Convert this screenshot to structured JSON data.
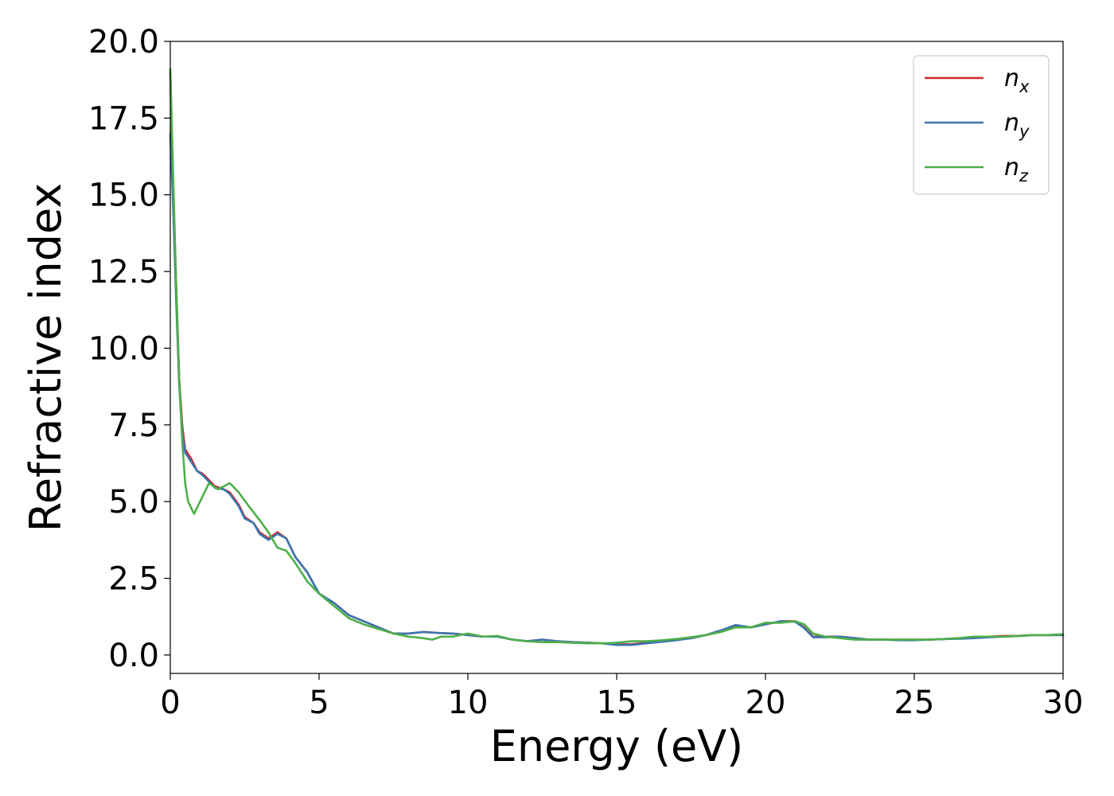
{
  "chart_data": {
    "type": "line",
    "title": "",
    "xlabel": "Energy (eV)",
    "ylabel": "Refractive index",
    "xlim": [
      0,
      30
    ],
    "ylim": [
      -0.6,
      20.0
    ],
    "xticks": [
      0,
      5,
      10,
      15,
      20,
      25,
      30
    ],
    "yticks": [
      0.0,
      2.5,
      5.0,
      7.5,
      10.0,
      12.5,
      15.0,
      17.5,
      20.0
    ],
    "xtick_labels": [
      "0",
      "5",
      "10",
      "15",
      "20",
      "25",
      "30"
    ],
    "ytick_labels": [
      "0.0",
      "2.5",
      "5.0",
      "7.5",
      "10.0",
      "12.5",
      "15.0",
      "17.5",
      "20.0"
    ],
    "grid": false,
    "legend_position": "top-right",
    "series": [
      {
        "name": "n_x",
        "legend_base": "n",
        "legend_sub": "x",
        "color": "#d62728",
        "x": [
          0,
          0.1,
          0.2,
          0.3,
          0.4,
          0.5,
          0.7,
          0.9,
          1.1,
          1.3,
          1.5,
          1.8,
          2.0,
          2.3,
          2.5,
          2.8,
          3.0,
          3.3,
          3.6,
          3.9,
          4.2,
          4.6,
          5.0,
          5.5,
          6.0,
          6.5,
          7.0,
          7.5,
          8.0,
          8.5,
          9.0,
          9.5,
          10.0,
          10.5,
          11.0,
          11.5,
          12.0,
          12.5,
          13.0,
          13.5,
          14.0,
          14.5,
          15.0,
          15.5,
          16.0,
          16.5,
          17.0,
          17.5,
          18.0,
          18.5,
          19.0,
          19.5,
          20.0,
          20.5,
          21.0,
          21.3,
          21.6,
          22.0,
          22.5,
          23.0,
          23.5,
          24.0,
          24.5,
          25.0,
          25.5,
          26.0,
          26.5,
          27.0,
          27.5,
          28.0,
          28.5,
          29.0,
          29.5,
          30.0
        ],
        "values": [
          19.0,
          15.0,
          12.0,
          9.0,
          7.5,
          6.7,
          6.4,
          6.0,
          5.9,
          5.7,
          5.5,
          5.4,
          5.3,
          4.9,
          4.5,
          4.3,
          4.0,
          3.8,
          4.0,
          3.8,
          3.2,
          2.7,
          2.0,
          1.7,
          1.3,
          1.1,
          0.9,
          0.7,
          0.7,
          0.75,
          0.72,
          0.7,
          0.65,
          0.6,
          0.6,
          0.5,
          0.45,
          0.5,
          0.45,
          0.42,
          0.4,
          0.38,
          0.35,
          0.35,
          0.4,
          0.45,
          0.5,
          0.55,
          0.65,
          0.8,
          0.95,
          0.9,
          1.0,
          1.1,
          1.1,
          0.9,
          0.6,
          0.6,
          0.6,
          0.55,
          0.5,
          0.5,
          0.5,
          0.5,
          0.5,
          0.52,
          0.55,
          0.57,
          0.6,
          0.62,
          0.62,
          0.65,
          0.65,
          0.65
        ]
      },
      {
        "name": "n_y",
        "legend_base": "n",
        "legend_sub": "y",
        "color": "#3a75b0",
        "x": [
          0,
          0.1,
          0.2,
          0.3,
          0.4,
          0.5,
          0.7,
          0.9,
          1.1,
          1.3,
          1.5,
          1.8,
          2.0,
          2.3,
          2.5,
          2.8,
          3.0,
          3.3,
          3.6,
          3.9,
          4.2,
          4.6,
          5.0,
          5.5,
          6.0,
          6.5,
          7.0,
          7.5,
          8.0,
          8.5,
          9.0,
          9.5,
          10.0,
          10.5,
          11.0,
          11.5,
          12.0,
          12.5,
          13.0,
          13.5,
          14.0,
          14.5,
          15.0,
          15.5,
          16.0,
          16.5,
          17.0,
          17.5,
          18.0,
          18.5,
          19.0,
          19.5,
          20.0,
          20.5,
          21.0,
          21.3,
          21.6,
          22.0,
          22.5,
          23.0,
          23.5,
          24.0,
          24.5,
          25.0,
          25.5,
          26.0,
          26.5,
          27.0,
          27.5,
          28.0,
          28.5,
          29.0,
          29.5,
          30.0
        ],
        "values": [
          17.0,
          14.5,
          11.5,
          8.8,
          7.3,
          6.6,
          6.3,
          6.0,
          5.85,
          5.65,
          5.45,
          5.4,
          5.25,
          4.85,
          4.45,
          4.3,
          3.95,
          3.75,
          3.95,
          3.8,
          3.2,
          2.7,
          2.0,
          1.7,
          1.3,
          1.1,
          0.9,
          0.7,
          0.7,
          0.75,
          0.72,
          0.7,
          0.65,
          0.6,
          0.6,
          0.5,
          0.45,
          0.5,
          0.45,
          0.42,
          0.4,
          0.38,
          0.33,
          0.33,
          0.38,
          0.43,
          0.48,
          0.55,
          0.65,
          0.8,
          0.98,
          0.9,
          1.0,
          1.1,
          1.08,
          0.88,
          0.58,
          0.58,
          0.6,
          0.55,
          0.5,
          0.5,
          0.48,
          0.48,
          0.5,
          0.52,
          0.53,
          0.55,
          0.58,
          0.6,
          0.62,
          0.65,
          0.65,
          0.65
        ]
      },
      {
        "name": "n_z",
        "legend_base": "n",
        "legend_sub": "z",
        "color": "#4daf4a",
        "x": [
          0,
          0.1,
          0.2,
          0.3,
          0.4,
          0.5,
          0.6,
          0.8,
          1.0,
          1.3,
          1.6,
          2.0,
          2.3,
          2.6,
          3.0,
          3.3,
          3.6,
          3.9,
          4.2,
          4.6,
          5.0,
          5.5,
          6.0,
          6.5,
          7.0,
          7.5,
          8.0,
          8.5,
          8.8,
          9.1,
          9.5,
          10.0,
          10.5,
          11.0,
          11.5,
          12.0,
          12.5,
          13.0,
          13.5,
          14.0,
          14.5,
          15.0,
          15.5,
          16.0,
          16.5,
          17.0,
          17.5,
          18.0,
          18.5,
          19.0,
          19.5,
          20.0,
          20.5,
          21.0,
          21.3,
          21.6,
          22.0,
          22.5,
          23.0,
          23.5,
          24.0,
          24.5,
          25.0,
          25.5,
          26.0,
          26.5,
          27.0,
          27.5,
          28.0,
          28.5,
          29.0,
          29.5,
          30.0
        ],
        "values": [
          19.1,
          15.5,
          12.0,
          9.0,
          7.0,
          5.6,
          5.0,
          4.6,
          5.0,
          5.6,
          5.4,
          5.6,
          5.3,
          4.9,
          4.4,
          4.0,
          3.5,
          3.4,
          3.0,
          2.4,
          2.0,
          1.6,
          1.2,
          1.0,
          0.85,
          0.7,
          0.6,
          0.55,
          0.5,
          0.6,
          0.6,
          0.7,
          0.6,
          0.62,
          0.5,
          0.45,
          0.42,
          0.42,
          0.4,
          0.38,
          0.38,
          0.4,
          0.45,
          0.45,
          0.48,
          0.52,
          0.58,
          0.65,
          0.75,
          0.9,
          0.9,
          1.05,
          1.05,
          1.1,
          1.0,
          0.7,
          0.6,
          0.55,
          0.5,
          0.5,
          0.5,
          0.5,
          0.5,
          0.5,
          0.52,
          0.55,
          0.6,
          0.6,
          0.6,
          0.62,
          0.65,
          0.65,
          0.68
        ]
      }
    ]
  }
}
